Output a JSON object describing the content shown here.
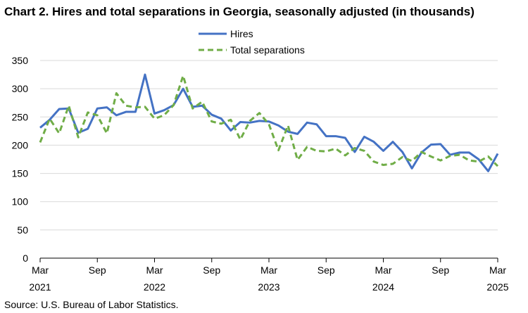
{
  "title": "Chart 2. Hires and total separations in Georgia, seasonally adjusted (in thousands)",
  "source": "Source: U.S. Bureau of Labor Statistics.",
  "chart_data": {
    "type": "line",
    "title": "Chart 2. Hires and total separations in Georgia, seasonally adjusted (in thousands)",
    "xlabel": "",
    "ylabel": "",
    "ylim": [
      0,
      350
    ],
    "yticks": [
      0,
      50,
      100,
      150,
      200,
      250,
      300,
      350
    ],
    "grid": true,
    "legend_position": "top-center",
    "x": [
      "Mar 2021",
      "Apr 2021",
      "May 2021",
      "Jun 2021",
      "Jul 2021",
      "Aug 2021",
      "Sep 2021",
      "Oct 2021",
      "Nov 2021",
      "Dec 2021",
      "Jan 2022",
      "Feb 2022",
      "Mar 2022",
      "Apr 2022",
      "May 2022",
      "Jun 2022",
      "Jul 2022",
      "Aug 2022",
      "Sep 2022",
      "Oct 2022",
      "Nov 2022",
      "Dec 2022",
      "Jan 2023",
      "Feb 2023",
      "Mar 2023",
      "Apr 2023",
      "May 2023",
      "Jun 2023",
      "Jul 2023",
      "Aug 2023",
      "Sep 2023",
      "Oct 2023",
      "Nov 2023",
      "Dec 2023",
      "Jan 2024",
      "Feb 2024",
      "Mar 2024",
      "Apr 2024",
      "May 2024",
      "Jun 2024",
      "Jul 2024",
      "Aug 2024",
      "Sep 2024",
      "Oct 2024",
      "Nov 2024",
      "Dec 2024",
      "Jan 2025",
      "Feb 2025",
      "Mar 2025"
    ],
    "x_tick_labels": [
      {
        "month": "Mar",
        "year": "2021",
        "index": 0
      },
      {
        "month": "Sep",
        "year": "",
        "index": 6
      },
      {
        "month": "Mar",
        "year": "2022",
        "index": 12
      },
      {
        "month": "Sep",
        "year": "",
        "index": 18
      },
      {
        "month": "Mar",
        "year": "2023",
        "index": 24
      },
      {
        "month": "Sep",
        "year": "",
        "index": 30
      },
      {
        "month": "Mar",
        "year": "2024",
        "index": 36
      },
      {
        "month": "Sep",
        "year": "",
        "index": 42
      },
      {
        "month": "Mar",
        "year": "2025",
        "index": 48
      }
    ],
    "series": [
      {
        "name": "Hires",
        "color": "#4472C4",
        "style": "solid",
        "values": [
          231,
          245,
          264,
          265,
          222,
          229,
          265,
          267,
          253,
          259,
          259,
          325,
          256,
          262,
          271,
          300,
          268,
          270,
          254,
          247,
          226,
          241,
          240,
          243,
          242,
          235,
          224,
          220,
          240,
          237,
          216,
          216,
          213,
          188,
          215,
          206,
          190,
          206,
          188,
          159,
          187,
          201,
          202,
          183,
          187,
          187,
          175,
          154,
          185
        ]
      },
      {
        "name": "Total separations",
        "color": "#70AD47",
        "style": "dashed",
        "values": [
          205,
          247,
          221,
          270,
          214,
          258,
          253,
          221,
          292,
          270,
          267,
          268,
          247,
          253,
          271,
          323,
          265,
          277,
          242,
          238,
          245,
          210,
          243,
          257,
          237,
          191,
          235,
          174,
          197,
          190,
          189,
          194,
          182,
          195,
          190,
          171,
          165,
          167,
          179,
          172,
          188,
          180,
          173,
          181,
          183,
          173,
          171,
          180,
          163
        ]
      }
    ]
  }
}
